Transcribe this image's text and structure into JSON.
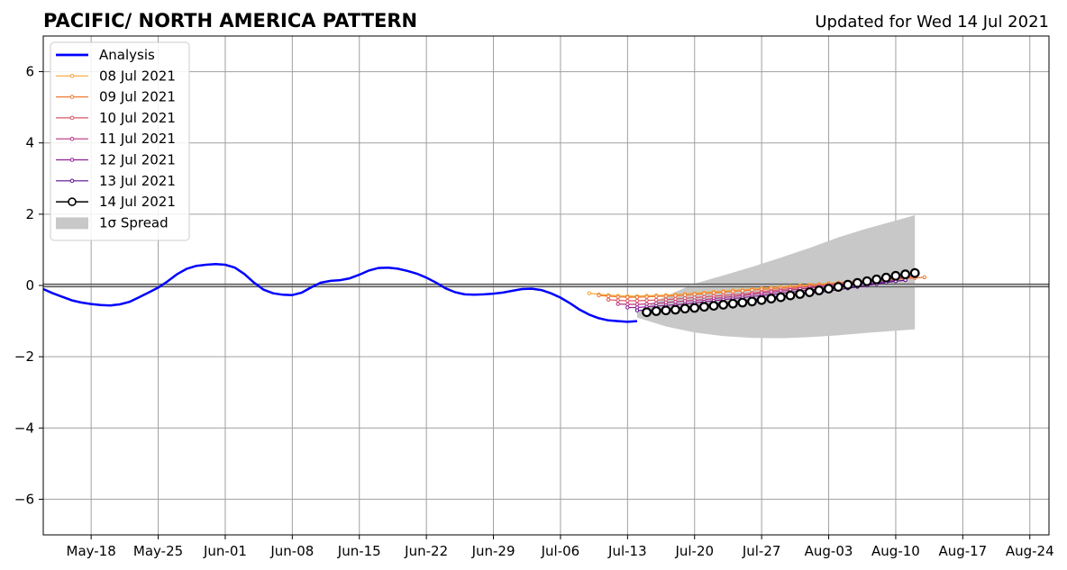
{
  "chart_data": {
    "type": "line",
    "title": "PACIFIC/ NORTH AMERICA PATTERN",
    "subtitle": "Updated for Wed 14 Jul 2021",
    "xlabel": "",
    "ylabel": "",
    "x_range": [
      "2021-05-13",
      "2021-08-26"
    ],
    "ylim": [
      -7,
      7
    ],
    "x_ticks": [
      {
        "date": "2021-05-18",
        "label": "May-18"
      },
      {
        "date": "2021-05-25",
        "label": "May-25"
      },
      {
        "date": "2021-06-01",
        "label": "Jun-01"
      },
      {
        "date": "2021-06-08",
        "label": "Jun-08"
      },
      {
        "date": "2021-06-15",
        "label": "Jun-15"
      },
      {
        "date": "2021-06-22",
        "label": "Jun-22"
      },
      {
        "date": "2021-06-29",
        "label": "Jun-29"
      },
      {
        "date": "2021-07-06",
        "label": "Jul-06"
      },
      {
        "date": "2021-07-13",
        "label": "Jul-13"
      },
      {
        "date": "2021-07-20",
        "label": "Jul-20"
      },
      {
        "date": "2021-07-27",
        "label": "Jul-27"
      },
      {
        "date": "2021-08-03",
        "label": "Aug-03"
      },
      {
        "date": "2021-08-10",
        "label": "Aug-10"
      },
      {
        "date": "2021-08-17",
        "label": "Aug-17"
      },
      {
        "date": "2021-08-24",
        "label": "Aug-24"
      }
    ],
    "y_ticks": [
      {
        "value": 6,
        "label": "6"
      },
      {
        "value": 4,
        "label": "4"
      },
      {
        "value": 2,
        "label": "2"
      },
      {
        "value": 0,
        "label": "0"
      },
      {
        "value": -2,
        "label": "−2"
      },
      {
        "value": -4,
        "label": "−4"
      },
      {
        "value": -6,
        "label": "−6"
      }
    ],
    "grid": true,
    "legend_position": "top-left",
    "legend": [
      {
        "label": "Analysis",
        "color": "#0000ff",
        "kind": "thick-line"
      },
      {
        "label": "08 Jul 2021",
        "color": "#f5a534",
        "kind": "small-marker"
      },
      {
        "label": "09 Jul 2021",
        "color": "#ef7a36",
        "kind": "small-marker"
      },
      {
        "label": "10 Jul 2021",
        "color": "#db5566",
        "kind": "small-marker"
      },
      {
        "label": "11 Jul 2021",
        "color": "#b8347f",
        "kind": "small-marker"
      },
      {
        "label": "12 Jul 2021",
        "color": "#8f1e98",
        "kind": "small-marker"
      },
      {
        "label": "13 Jul 2021",
        "color": "#5a0d8c",
        "kind": "small-marker"
      },
      {
        "label": "14 Jul 2021",
        "color": "#000000",
        "kind": "large-marker"
      },
      {
        "label": "1σ Spread",
        "color": "#c8c8c8",
        "kind": "fill"
      }
    ],
    "analysis": {
      "name": "Analysis",
      "color": "#0000ff",
      "x": [
        "2021-05-13",
        "2021-05-14",
        "2021-05-15",
        "2021-05-16",
        "2021-05-17",
        "2021-05-18",
        "2021-05-19",
        "2021-05-20",
        "2021-05-21",
        "2021-05-22",
        "2021-05-23",
        "2021-05-24",
        "2021-05-25",
        "2021-05-26",
        "2021-05-27",
        "2021-05-28",
        "2021-05-29",
        "2021-05-30",
        "2021-05-31",
        "2021-06-01",
        "2021-06-02",
        "2021-06-03",
        "2021-06-04",
        "2021-06-05",
        "2021-06-06",
        "2021-06-07",
        "2021-06-08",
        "2021-06-09",
        "2021-06-10",
        "2021-06-11",
        "2021-06-12",
        "2021-06-13",
        "2021-06-14",
        "2021-06-15",
        "2021-06-16",
        "2021-06-17",
        "2021-06-18",
        "2021-06-19",
        "2021-06-20",
        "2021-06-21",
        "2021-06-22",
        "2021-06-23",
        "2021-06-24",
        "2021-06-25",
        "2021-06-26",
        "2021-06-27",
        "2021-06-28",
        "2021-06-29",
        "2021-06-30",
        "2021-07-01",
        "2021-07-02",
        "2021-07-03",
        "2021-07-04",
        "2021-07-05",
        "2021-07-06",
        "2021-07-07",
        "2021-07-08",
        "2021-07-09",
        "2021-07-10",
        "2021-07-11",
        "2021-07-12",
        "2021-07-13",
        "2021-07-14"
      ],
      "y": [
        -0.1,
        -0.22,
        -0.32,
        -0.42,
        -0.48,
        -0.52,
        -0.55,
        -0.56,
        -0.53,
        -0.46,
        -0.33,
        -0.2,
        -0.06,
        0.12,
        0.32,
        0.47,
        0.55,
        0.58,
        0.6,
        0.58,
        0.5,
        0.32,
        0.08,
        -0.12,
        -0.22,
        -0.26,
        -0.27,
        -0.2,
        -0.05,
        0.08,
        0.13,
        0.15,
        0.2,
        0.3,
        0.42,
        0.49,
        0.5,
        0.47,
        0.41,
        0.33,
        0.22,
        0.08,
        -0.08,
        -0.19,
        -0.25,
        -0.26,
        -0.25,
        -0.23,
        -0.2,
        -0.15,
        -0.1,
        -0.09,
        -0.13,
        -0.22,
        -0.34,
        -0.5,
        -0.68,
        -0.82,
        -0.92,
        -0.98,
        -1.0,
        -1.02,
        -1.0
      ]
    },
    "forecasts": [
      {
        "name": "08 Jul 2021",
        "color": "#f5a534",
        "marker_size": "small",
        "x": [
          "2021-07-09",
          "2021-07-10",
          "2021-07-11",
          "2021-07-12",
          "2021-07-13",
          "2021-07-14",
          "2021-07-15",
          "2021-07-16",
          "2021-07-17",
          "2021-07-18",
          "2021-07-19",
          "2021-07-20",
          "2021-07-21",
          "2021-07-22",
          "2021-07-23",
          "2021-07-24",
          "2021-07-25",
          "2021-07-26",
          "2021-07-27",
          "2021-07-28",
          "2021-07-29",
          "2021-07-30",
          "2021-07-31",
          "2021-08-01",
          "2021-08-02",
          "2021-08-03",
          "2021-08-04",
          "2021-08-05",
          "2021-08-06",
          "2021-08-07",
          "2021-08-08",
          "2021-08-09",
          "2021-08-10",
          "2021-08-11",
          "2021-08-12"
        ],
        "y": [
          -0.22,
          -0.25,
          -0.27,
          -0.29,
          -0.3,
          -0.3,
          -0.29,
          -0.28,
          -0.27,
          -0.26,
          -0.24,
          -0.22,
          -0.2,
          -0.18,
          -0.16,
          -0.14,
          -0.12,
          -0.1,
          -0.08,
          -0.06,
          -0.04,
          -0.02,
          0.0,
          0.02,
          0.04,
          0.06,
          0.08,
          0.1,
          0.12,
          0.14,
          0.16,
          0.18,
          0.2,
          0.22,
          0.24
        ]
      },
      {
        "name": "09 Jul 2021",
        "color": "#ef7a36",
        "marker_size": "small",
        "x": [
          "2021-07-10",
          "2021-07-11",
          "2021-07-12",
          "2021-07-13",
          "2021-07-14",
          "2021-07-15",
          "2021-07-16",
          "2021-07-17",
          "2021-07-18",
          "2021-07-19",
          "2021-07-20",
          "2021-07-21",
          "2021-07-22",
          "2021-07-23",
          "2021-07-24",
          "2021-07-25",
          "2021-07-26",
          "2021-07-27",
          "2021-07-28",
          "2021-07-29",
          "2021-07-30",
          "2021-07-31",
          "2021-08-01",
          "2021-08-02",
          "2021-08-03",
          "2021-08-04",
          "2021-08-05",
          "2021-08-06",
          "2021-08-07",
          "2021-08-08",
          "2021-08-09",
          "2021-08-10",
          "2021-08-11",
          "2021-08-12",
          "2021-08-13"
        ],
        "y": [
          -0.28,
          -0.3,
          -0.32,
          -0.33,
          -0.33,
          -0.32,
          -0.31,
          -0.3,
          -0.29,
          -0.27,
          -0.25,
          -0.23,
          -0.21,
          -0.19,
          -0.17,
          -0.15,
          -0.13,
          -0.11,
          -0.09,
          -0.07,
          -0.05,
          -0.03,
          -0.01,
          0.01,
          0.03,
          0.05,
          0.07,
          0.09,
          0.11,
          0.13,
          0.15,
          0.17,
          0.19,
          0.21,
          0.23
        ]
      },
      {
        "name": "10 Jul 2021",
        "color": "#db5566",
        "marker_size": "small",
        "x": [
          "2021-07-11",
          "2021-07-12",
          "2021-07-13",
          "2021-07-14",
          "2021-07-15",
          "2021-07-16",
          "2021-07-17",
          "2021-07-18",
          "2021-07-19",
          "2021-07-20",
          "2021-07-21",
          "2021-07-22",
          "2021-07-23",
          "2021-07-24",
          "2021-07-25",
          "2021-07-26",
          "2021-07-27",
          "2021-07-28",
          "2021-07-29",
          "2021-07-30",
          "2021-07-31",
          "2021-08-01",
          "2021-08-02",
          "2021-08-03",
          "2021-08-04",
          "2021-08-05",
          "2021-08-06",
          "2021-08-07",
          "2021-08-08",
          "2021-08-09",
          "2021-08-10",
          "2021-08-11",
          "2021-08-12"
        ],
        "y": [
          -0.4,
          -0.42,
          -0.43,
          -0.43,
          -0.42,
          -0.41,
          -0.4,
          -0.38,
          -0.36,
          -0.34,
          -0.32,
          -0.3,
          -0.28,
          -0.26,
          -0.24,
          -0.21,
          -0.18,
          -0.15,
          -0.12,
          -0.09,
          -0.06,
          -0.03,
          0.0,
          0.03,
          0.06,
          0.09,
          0.12,
          0.15,
          0.17,
          0.19,
          0.21,
          0.23,
          0.25
        ]
      },
      {
        "name": "11 Jul 2021",
        "color": "#b8347f",
        "marker_size": "small",
        "x": [
          "2021-07-12",
          "2021-07-13",
          "2021-07-14",
          "2021-07-15",
          "2021-07-16",
          "2021-07-17",
          "2021-07-18",
          "2021-07-19",
          "2021-07-20",
          "2021-07-21",
          "2021-07-22",
          "2021-07-23",
          "2021-07-24",
          "2021-07-25",
          "2021-07-26",
          "2021-07-27",
          "2021-07-28",
          "2021-07-29",
          "2021-07-30",
          "2021-07-31",
          "2021-08-01",
          "2021-08-02",
          "2021-08-03",
          "2021-08-04",
          "2021-08-05",
          "2021-08-06",
          "2021-08-07",
          "2021-08-08",
          "2021-08-09",
          "2021-08-10",
          "2021-08-11"
        ],
        "y": [
          -0.52,
          -0.53,
          -0.53,
          -0.52,
          -0.5,
          -0.48,
          -0.46,
          -0.44,
          -0.42,
          -0.4,
          -0.37,
          -0.34,
          -0.31,
          -0.28,
          -0.25,
          -0.22,
          -0.19,
          -0.16,
          -0.13,
          -0.1,
          -0.07,
          -0.04,
          -0.01,
          0.02,
          0.05,
          0.08,
          0.11,
          0.14,
          0.17,
          0.2,
          0.22
        ]
      },
      {
        "name": "12 Jul 2021",
        "color": "#8f1e98",
        "marker_size": "small",
        "x": [
          "2021-07-13",
          "2021-07-14",
          "2021-07-15",
          "2021-07-16",
          "2021-07-17",
          "2021-07-18",
          "2021-07-19",
          "2021-07-20",
          "2021-07-21",
          "2021-07-22",
          "2021-07-23",
          "2021-07-24",
          "2021-07-25",
          "2021-07-26",
          "2021-07-27",
          "2021-07-28",
          "2021-07-29",
          "2021-07-30",
          "2021-07-31",
          "2021-08-01",
          "2021-08-02",
          "2021-08-03",
          "2021-08-04",
          "2021-08-05",
          "2021-08-06",
          "2021-08-07",
          "2021-08-08",
          "2021-08-09",
          "2021-08-10"
        ],
        "y": [
          -0.62,
          -0.62,
          -0.6,
          -0.58,
          -0.56,
          -0.54,
          -0.52,
          -0.49,
          -0.46,
          -0.43,
          -0.4,
          -0.37,
          -0.34,
          -0.31,
          -0.28,
          -0.25,
          -0.22,
          -0.19,
          -0.16,
          -0.13,
          -0.1,
          -0.07,
          -0.04,
          -0.01,
          0.02,
          0.05,
          0.08,
          0.11,
          0.14
        ]
      },
      {
        "name": "13 Jul 2021",
        "color": "#5a0d8c",
        "marker_size": "small",
        "x": [
          "2021-07-14",
          "2021-07-15",
          "2021-07-16",
          "2021-07-17",
          "2021-07-18",
          "2021-07-19",
          "2021-07-20",
          "2021-07-21",
          "2021-07-22",
          "2021-07-23",
          "2021-07-24",
          "2021-07-25",
          "2021-07-26",
          "2021-07-27",
          "2021-07-28",
          "2021-07-29",
          "2021-07-30",
          "2021-07-31",
          "2021-08-01",
          "2021-08-02",
          "2021-08-03",
          "2021-08-04",
          "2021-08-05",
          "2021-08-06",
          "2021-08-07",
          "2021-08-08",
          "2021-08-09",
          "2021-08-10",
          "2021-08-11"
        ],
        "y": [
          -0.7,
          -0.7,
          -0.68,
          -0.66,
          -0.64,
          -0.61,
          -0.58,
          -0.55,
          -0.52,
          -0.49,
          -0.46,
          -0.43,
          -0.4,
          -0.37,
          -0.34,
          -0.31,
          -0.28,
          -0.25,
          -0.22,
          -0.19,
          -0.16,
          -0.12,
          -0.08,
          -0.04,
          0.0,
          0.04,
          0.08,
          0.12,
          0.15
        ]
      },
      {
        "name": "14 Jul 2021",
        "color": "#000000",
        "marker_size": "large",
        "x": [
          "2021-07-15",
          "2021-07-16",
          "2021-07-17",
          "2021-07-18",
          "2021-07-19",
          "2021-07-20",
          "2021-07-21",
          "2021-07-22",
          "2021-07-23",
          "2021-07-24",
          "2021-07-25",
          "2021-07-26",
          "2021-07-27",
          "2021-07-28",
          "2021-07-29",
          "2021-07-30",
          "2021-07-31",
          "2021-08-01",
          "2021-08-02",
          "2021-08-03",
          "2021-08-04",
          "2021-08-05",
          "2021-08-06",
          "2021-08-07",
          "2021-08-08",
          "2021-08-09",
          "2021-08-10",
          "2021-08-11",
          "2021-08-12"
        ],
        "y": [
          -0.75,
          -0.72,
          -0.7,
          -0.68,
          -0.65,
          -0.63,
          -0.6,
          -0.57,
          -0.54,
          -0.51,
          -0.48,
          -0.45,
          -0.41,
          -0.37,
          -0.33,
          -0.28,
          -0.24,
          -0.19,
          -0.14,
          -0.09,
          -0.04,
          0.02,
          0.07,
          0.12,
          0.17,
          0.22,
          0.27,
          0.31,
          0.35
        ]
      }
    ],
    "spread": {
      "name": "1σ Spread",
      "color": "#c8c8c8",
      "x": [
        "2021-07-14",
        "2021-07-17",
        "2021-07-20",
        "2021-07-23",
        "2021-07-26",
        "2021-07-29",
        "2021-08-01",
        "2021-08-04",
        "2021-08-07",
        "2021-08-10",
        "2021-08-12"
      ],
      "upper": [
        -0.75,
        -0.3,
        0.05,
        0.28,
        0.52,
        0.78,
        1.05,
        1.35,
        1.6,
        1.82,
        1.97
      ],
      "lower": [
        -0.9,
        -1.15,
        -1.32,
        -1.42,
        -1.47,
        -1.48,
        -1.45,
        -1.4,
        -1.33,
        -1.27,
        -1.23
      ]
    }
  }
}
